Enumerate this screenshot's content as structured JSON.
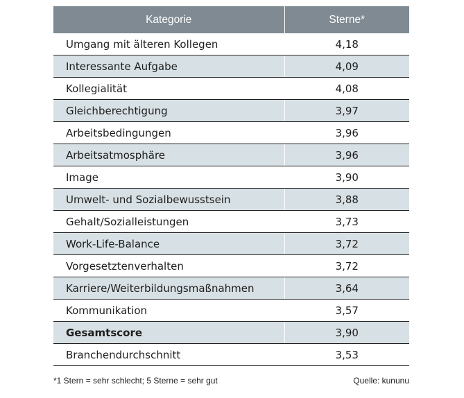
{
  "chart_data": {
    "type": "table",
    "columns": [
      "Kategorie",
      "Sterne*"
    ],
    "rows": [
      {
        "label": "Umgang mit älteren Kollegen",
        "value": "4,18",
        "shaded": false,
        "bold": false
      },
      {
        "label": "Interessante Aufgabe",
        "value": "4,09",
        "shaded": true,
        "bold": false
      },
      {
        "label": "Kollegialität",
        "value": "4,08",
        "shaded": false,
        "bold": false
      },
      {
        "label": "Gleichberechtigung",
        "value": "3,97",
        "shaded": true,
        "bold": false
      },
      {
        "label": "Arbeitsbedingungen",
        "value": "3,96",
        "shaded": false,
        "bold": false
      },
      {
        "label": "Arbeitsatmosphäre",
        "value": "3,96",
        "shaded": true,
        "bold": false
      },
      {
        "label": "Image",
        "value": "3,90",
        "shaded": false,
        "bold": false
      },
      {
        "label": "Umwelt- und Sozialbewusstsein",
        "value": "3,88",
        "shaded": true,
        "bold": false
      },
      {
        "label": "Gehalt/Sozialleistungen",
        "value": "3,73",
        "shaded": false,
        "bold": false
      },
      {
        "label": "Work-Life-Balance",
        "value": "3,72",
        "shaded": true,
        "bold": false
      },
      {
        "label": "Vorgesetztenverhalten",
        "value": "3,72",
        "shaded": false,
        "bold": false
      },
      {
        "label": "Karriere/Weiterbildungsmaßnahmen",
        "value": "3,64",
        "shaded": true,
        "bold": false
      },
      {
        "label": "Kommunikation",
        "value": "3,57",
        "shaded": false,
        "bold": false
      },
      {
        "label": "Gesamtscore",
        "value": "3,90",
        "shaded": true,
        "bold": true
      },
      {
        "label": "Branchendurchschnitt",
        "value": "3,53",
        "shaded": false,
        "bold": false
      }
    ],
    "footnote": "*1 Stern = sehr schlecht; 5 Sterne = sehr gut",
    "source": "Quelle: kununu"
  },
  "colors": {
    "header_bg": "#7f8a92",
    "header_text": "#ffffff",
    "shaded_row": "#d7e0e4",
    "text": "#1e1e1e"
  }
}
